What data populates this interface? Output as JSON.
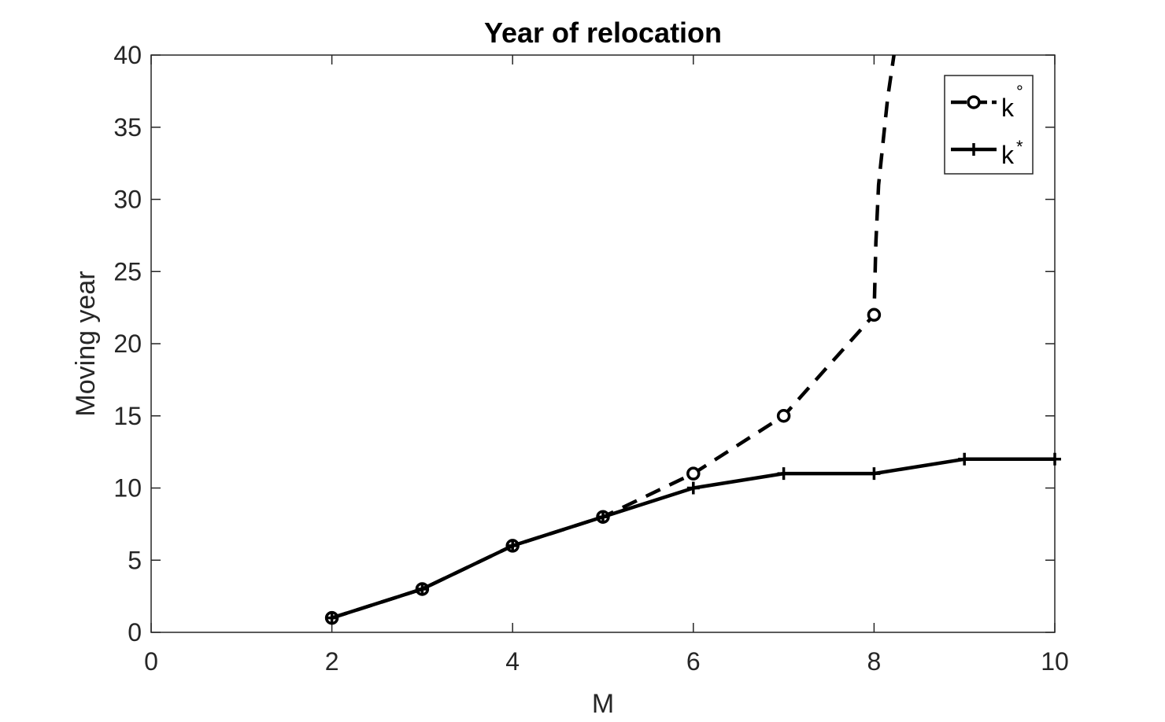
{
  "chart_data": {
    "type": "line",
    "title": "Year of relocation",
    "xlabel": "M",
    "ylabel": "Moving year",
    "xlim": [
      0,
      10
    ],
    "ylim": [
      0,
      40
    ],
    "xticks": [
      0,
      2,
      4,
      6,
      8,
      10
    ],
    "yticks": [
      0,
      5,
      10,
      15,
      20,
      25,
      30,
      35,
      40
    ],
    "grid": false,
    "legend_position": "top-right",
    "series": [
      {
        "name": "k°",
        "label_base": "k",
        "label_sup": "°",
        "line_style": "dashed",
        "marker": "circle",
        "color": "#000000",
        "x": [
          2,
          3,
          4,
          5,
          6,
          7,
          8
        ],
        "y": [
          1,
          3,
          6,
          8,
          11,
          15,
          22
        ],
        "tail": {
          "x": [
            8,
            8.02,
            8.05,
            8.1,
            8.15,
            8.22
          ],
          "y": [
            22,
            27,
            31,
            34,
            37,
            40
          ]
        }
      },
      {
        "name": "k*",
        "label_base": "k",
        "label_sup": "*",
        "line_style": "solid",
        "marker": "plus",
        "color": "#000000",
        "x": [
          2,
          3,
          4,
          5,
          6,
          7,
          8,
          9,
          10
        ],
        "y": [
          1,
          3,
          6,
          8,
          10,
          11,
          11,
          12,
          12
        ]
      }
    ]
  }
}
